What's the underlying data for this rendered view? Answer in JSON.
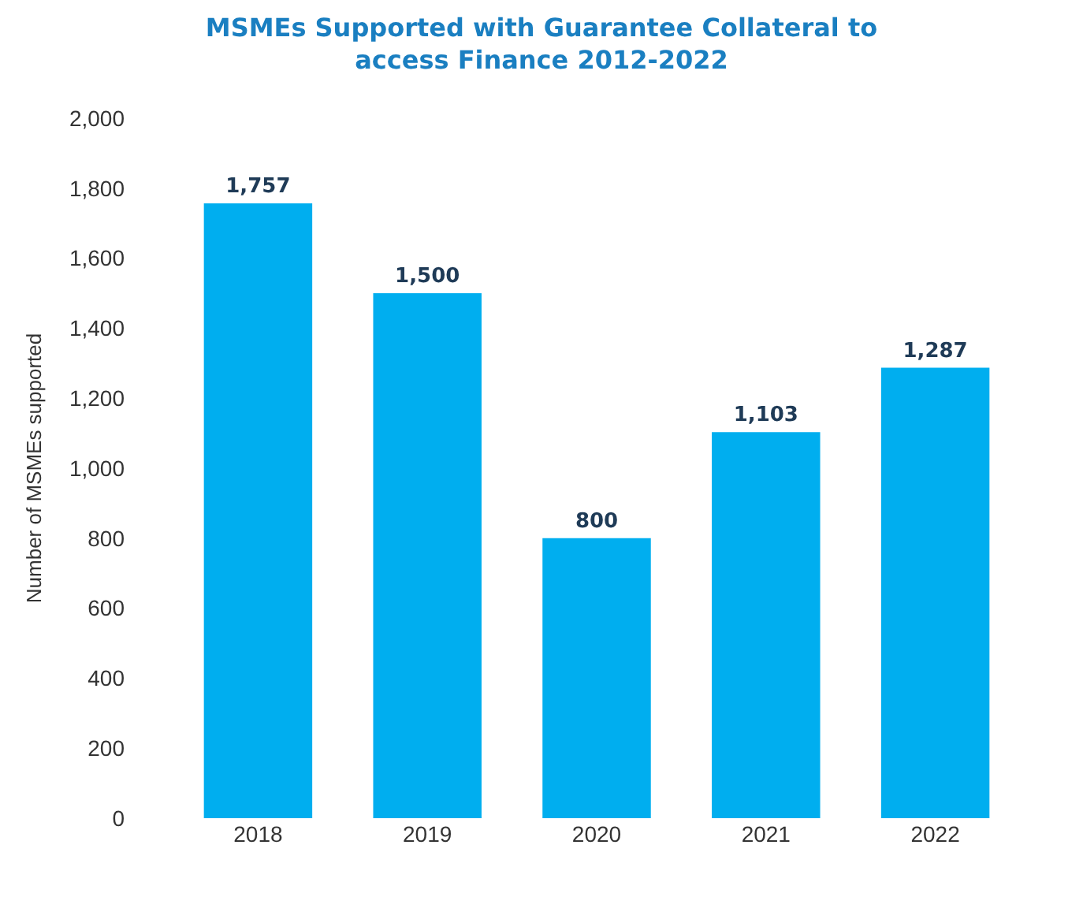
{
  "chart_data": {
    "type": "bar",
    "title": "MSMEs Supported with Guarantee Collateral to access Finance 2012-2022",
    "ylabel": "Number of MSMEs supported",
    "categories": [
      "2018",
      "2019",
      "2020",
      "2021",
      "2022"
    ],
    "values": [
      1757,
      1500,
      800,
      1103,
      1287
    ],
    "color": "#00aeef",
    "ylim": [
      0,
      2000
    ],
    "yticks": [
      0,
      200,
      400,
      600,
      800,
      {
        "value": 1000,
        "label": "1,000"
      },
      {
        "value": 1200,
        "label": "1,200"
      },
      {
        "value": 1400,
        "label": "1,400"
      },
      {
        "value": 1600,
        "label": "1,600"
      },
      {
        "value": 1800,
        "label": "1,800"
      },
      {
        "value": 2000,
        "label": "2,000"
      }
    ],
    "value_labels": [
      "1,757",
      "1,500",
      "800",
      "1,103",
      "1,287"
    ],
    "grid": false
  }
}
